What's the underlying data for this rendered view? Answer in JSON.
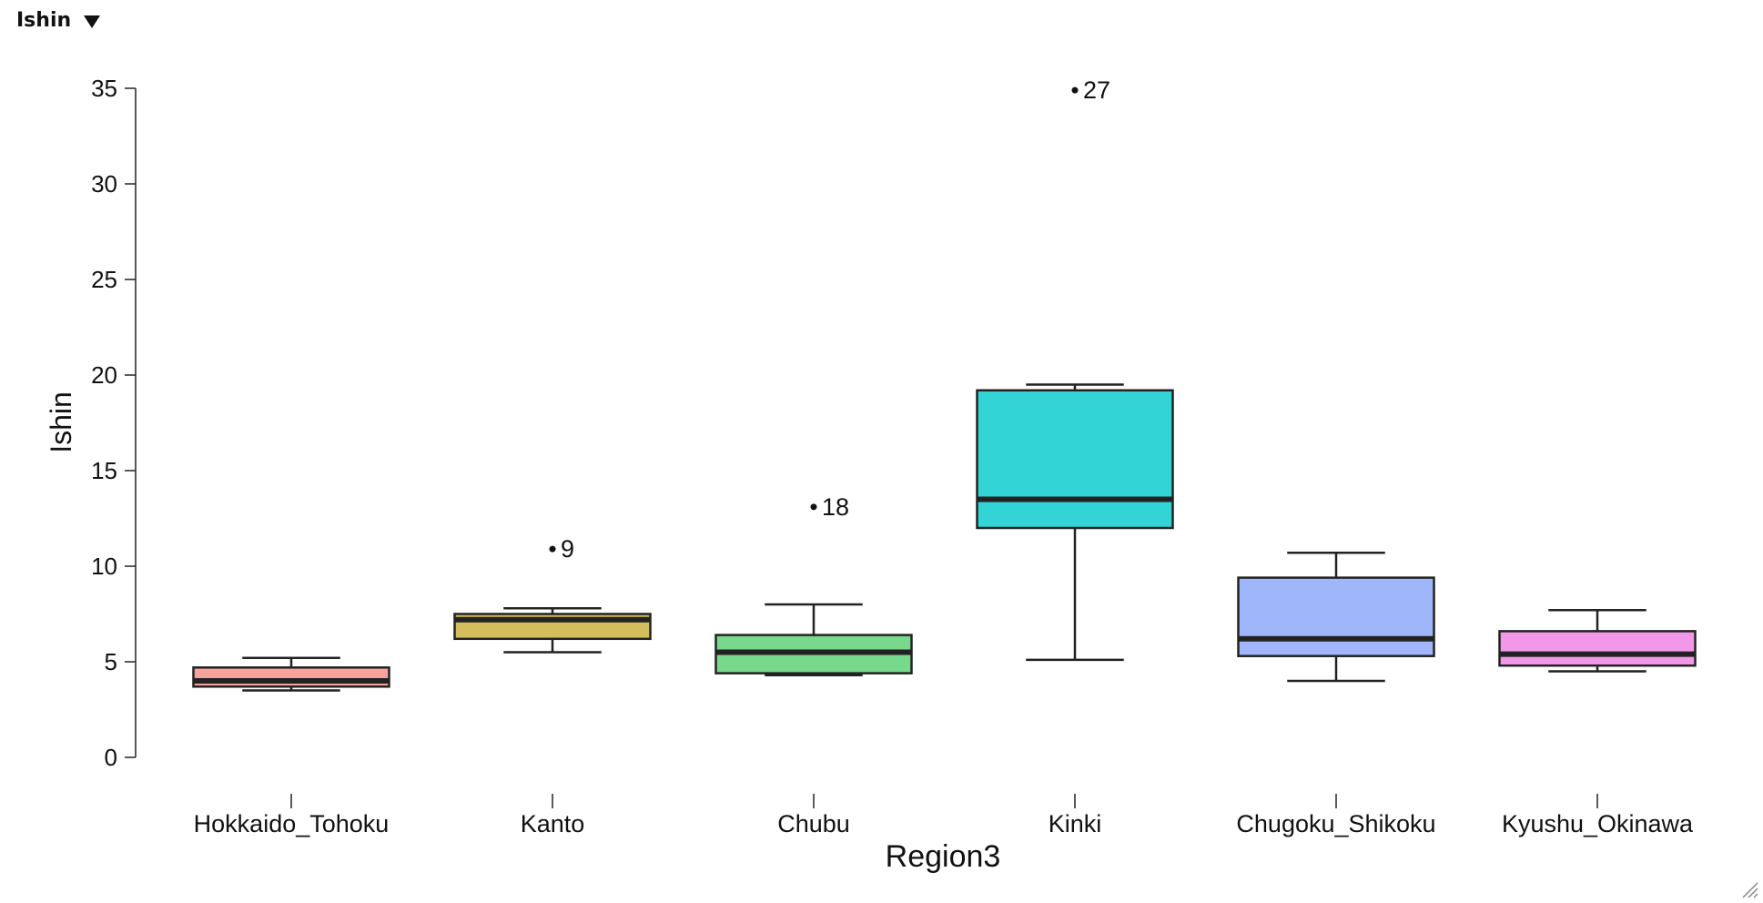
{
  "header": {
    "title": "Ishin",
    "dropdown_icon": "caret-down-icon"
  },
  "chart_data": {
    "type": "box",
    "title": "",
    "xlabel": "Region3",
    "ylabel": "Ishin",
    "ylim": [
      0,
      35
    ],
    "yticks": [
      0,
      5,
      10,
      15,
      20,
      25,
      30,
      35
    ],
    "grid": false,
    "legend": "none",
    "categories": [
      "Hokkaido_Tohoku",
      "Kanto",
      "Chubu",
      "Kinki",
      "Chugoku_Shikoku",
      "Kyushu_Okinawa"
    ],
    "boxes": [
      {
        "category": "Hokkaido_Tohoku",
        "color": "#f8a29e",
        "whisker_low": 3.5,
        "q1": 3.7,
        "median": 4.0,
        "q3": 4.7,
        "whisker_high": 5.2,
        "outliers": []
      },
      {
        "category": "Kanto",
        "color": "#d4bd5d",
        "whisker_low": 5.5,
        "q1": 6.2,
        "median": 7.2,
        "q3": 7.5,
        "whisker_high": 7.8,
        "outliers": [
          {
            "value": 10.9,
            "label": "9"
          }
        ]
      },
      {
        "category": "Chubu",
        "color": "#78d88c",
        "whisker_low": 4.3,
        "q1": 4.4,
        "median": 5.5,
        "q3": 6.4,
        "whisker_high": 8.0,
        "outliers": [
          {
            "value": 13.1,
            "label": "18"
          }
        ]
      },
      {
        "category": "Kinki",
        "color": "#32d4d6",
        "whisker_low": 5.1,
        "q1": 12.0,
        "median": 13.5,
        "q3": 19.2,
        "whisker_high": 19.5,
        "outliers": [
          {
            "value": 34.9,
            "label": "27"
          }
        ]
      },
      {
        "category": "Chugoku_Shikoku",
        "color": "#a0b6fb",
        "whisker_low": 4.0,
        "q1": 5.3,
        "median": 6.2,
        "q3": 9.4,
        "whisker_high": 10.7,
        "outliers": []
      },
      {
        "category": "Kyushu_Okinawa",
        "color": "#f398e8",
        "whisker_low": 4.5,
        "q1": 4.8,
        "median": 5.4,
        "q3": 6.6,
        "whisker_high": 7.7,
        "outliers": []
      }
    ]
  }
}
